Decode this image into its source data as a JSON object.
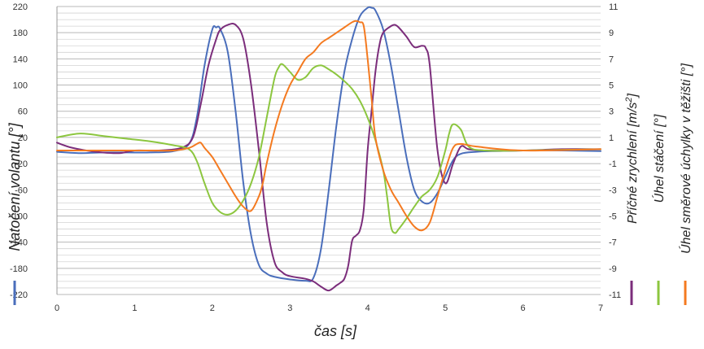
{
  "chart_data": {
    "type": "line",
    "title": "",
    "xlabel": "čas [s]",
    "xlim": [
      0,
      7
    ],
    "x_ticks": [
      0,
      1,
      2,
      3,
      4,
      5,
      6,
      7
    ],
    "ylabel_left": "Natočení volantu [°]",
    "ylim_left": [
      -220,
      220
    ],
    "y_ticks_left": [
      -220,
      -180,
      -140,
      -100,
      -60,
      -20,
      20,
      60,
      100,
      140,
      180,
      220
    ],
    "ylim_right": [
      -11,
      11
    ],
    "y_ticks_right": [
      -11,
      -9,
      -7,
      -5,
      -3,
      -1,
      1,
      3,
      5,
      7,
      9,
      11
    ],
    "right_labels": [
      {
        "name": "Příčné zrychlení [m/s²]",
        "main": "Příčné zrychlení [m/s",
        "sup": "2",
        "tail": "]",
        "color": "#7b2d7b"
      },
      {
        "name": "Úhel stáčení [°]",
        "color": "#8cc63f"
      },
      {
        "name": "Úhel směrové úchylky v těžišti [°]",
        "color": "#f47a20"
      }
    ],
    "left_legend_color": "#4a6ebb",
    "grid": true,
    "series": [
      {
        "key": "steering",
        "axis": "left",
        "color": "#4a6ebb",
        "x": [
          0,
          0.3,
          0.6,
          0.9,
          1.2,
          1.5,
          1.7,
          1.8,
          1.9,
          2.0,
          2.05,
          2.1,
          2.2,
          2.3,
          2.4,
          2.5,
          2.6,
          2.7,
          2.8,
          3.0,
          3.2,
          3.3,
          3.4,
          3.5,
          3.6,
          3.7,
          3.8,
          3.9,
          4.0,
          4.05,
          4.1,
          4.2,
          4.3,
          4.4,
          4.5,
          4.6,
          4.7,
          4.8,
          4.9,
          5.0,
          5.1,
          5.2,
          5.4,
          5.6,
          6.0,
          6.5,
          7.0
        ],
        "y": [
          -2,
          -4,
          -3,
          -3,
          -3,
          -1,
          10,
          50,
          130,
          185,
          188,
          186,
          150,
          60,
          -50,
          -130,
          -175,
          -188,
          -193,
          -197,
          -199,
          -195,
          -150,
          -60,
          40,
          120,
          170,
          205,
          218,
          218,
          214,
          185,
          130,
          60,
          -10,
          -60,
          -78,
          -80,
          -65,
          -40,
          -15,
          -5,
          -2,
          -1,
          0,
          0,
          -1
        ]
      },
      {
        "key": "lateral_acceleration",
        "axis": "right",
        "color": "#7b2d7b",
        "x": [
          0,
          0.2,
          0.5,
          0.8,
          1.0,
          1.3,
          1.6,
          1.75,
          1.85,
          1.95,
          2.05,
          2.1,
          2.2,
          2.3,
          2.4,
          2.5,
          2.6,
          2.7,
          2.8,
          2.9,
          3.0,
          3.2,
          3.3,
          3.4,
          3.5,
          3.6,
          3.65,
          3.7,
          3.75,
          3.8,
          3.85,
          3.9,
          3.95,
          4.0,
          4.05,
          4.1,
          4.15,
          4.2,
          4.3,
          4.35,
          4.4,
          4.5,
          4.6,
          4.7,
          4.75,
          4.8,
          4.9,
          5.0,
          5.1,
          5.2,
          5.3,
          5.5,
          6.0,
          6.5,
          7.0
        ],
        "y": [
          0.6,
          0.2,
          -0.1,
          -0.2,
          0.0,
          0.0,
          0.2,
          1.0,
          3.5,
          6.5,
          8.5,
          9.2,
          9.6,
          9.6,
          8.5,
          5.0,
          0.0,
          -5.5,
          -8.5,
          -9.3,
          -9.6,
          -9.8,
          -10.0,
          -10.4,
          -10.7,
          -10.3,
          -10.1,
          -9.8,
          -8.8,
          -6.9,
          -6.5,
          -6.1,
          -4.5,
          0.0,
          3.0,
          6.0,
          8.0,
          9.0,
          9.5,
          9.6,
          9.4,
          8.7,
          7.9,
          8.0,
          7.8,
          6.5,
          0.0,
          -2.5,
          -1.0,
          0.3,
          0.1,
          0.0,
          0.0,
          0.1,
          0.1
        ]
      },
      {
        "key": "yaw_angle",
        "axis": "right",
        "color": "#8cc63f",
        "x": [
          0,
          0.3,
          0.6,
          0.9,
          1.2,
          1.5,
          1.7,
          1.8,
          1.9,
          2.0,
          2.1,
          2.2,
          2.3,
          2.4,
          2.5,
          2.6,
          2.7,
          2.8,
          2.85,
          2.9,
          3.0,
          3.1,
          3.2,
          3.3,
          3.4,
          3.5,
          3.6,
          3.7,
          3.8,
          3.9,
          4.0,
          4.1,
          4.2,
          4.25,
          4.3,
          4.35,
          4.4,
          4.5,
          4.6,
          4.7,
          4.8,
          4.9,
          5.0,
          5.05,
          5.1,
          5.2,
          5.3,
          5.5,
          6.0,
          7.0
        ],
        "y": [
          1.0,
          1.3,
          1.1,
          0.9,
          0.7,
          0.4,
          0.1,
          -0.8,
          -2.5,
          -4.0,
          -4.7,
          -4.9,
          -4.6,
          -3.8,
          -2.5,
          -0.5,
          2.5,
          5.5,
          6.3,
          6.6,
          6.0,
          5.4,
          5.6,
          6.3,
          6.5,
          6.2,
          5.8,
          5.3,
          4.7,
          3.8,
          2.5,
          0.8,
          -1.5,
          -3.5,
          -5.8,
          -6.3,
          -6.0,
          -5.2,
          -4.3,
          -3.5,
          -3.0,
          -2.0,
          0.0,
          1.3,
          2.0,
          1.6,
          0.3,
          0.0,
          0.0,
          0.1
        ]
      },
      {
        "key": "sideslip_angle",
        "axis": "right",
        "color": "#f47a20",
        "x": [
          0,
          0.3,
          0.6,
          0.9,
          1.2,
          1.5,
          1.7,
          1.8,
          1.85,
          1.9,
          2.0,
          2.1,
          2.2,
          2.3,
          2.4,
          2.5,
          2.6,
          2.65,
          2.7,
          2.8,
          2.9,
          3.0,
          3.1,
          3.2,
          3.3,
          3.4,
          3.5,
          3.6,
          3.7,
          3.8,
          3.85,
          3.9,
          3.95,
          4.0,
          4.05,
          4.1,
          4.2,
          4.3,
          4.4,
          4.5,
          4.6,
          4.7,
          4.8,
          4.9,
          5.0,
          5.1,
          5.2,
          5.4,
          6.0,
          7.0
        ],
        "y": [
          0.0,
          0.0,
          0.0,
          0.0,
          0.0,
          0.0,
          0.2,
          0.5,
          0.6,
          0.2,
          -0.5,
          -1.5,
          -2.5,
          -3.5,
          -4.3,
          -4.6,
          -3.5,
          -2.5,
          -1.0,
          1.5,
          3.5,
          5.0,
          6.0,
          7.0,
          7.5,
          8.2,
          8.6,
          9.0,
          9.4,
          9.8,
          9.9,
          9.8,
          9.5,
          7.0,
          4.0,
          1.0,
          -1.5,
          -3.0,
          -4.0,
          -5.0,
          -5.8,
          -6.1,
          -5.5,
          -3.5,
          -1.5,
          0.2,
          0.5,
          0.3,
          0.0,
          0.1
        ]
      }
    ]
  }
}
